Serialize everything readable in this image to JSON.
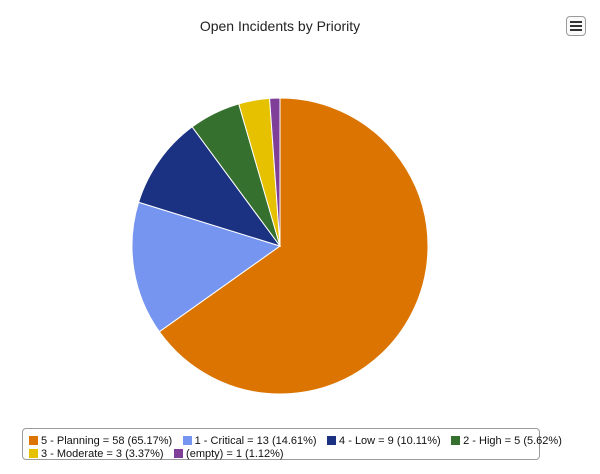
{
  "toolbar": {
    "menu_icon": "hamburger-menu-icon"
  },
  "chart_data": {
    "type": "pie",
    "title": "Open Incidents by Priority",
    "legend_position": "bottom",
    "slices": [
      {
        "label": "5 - Planning = 58 (65.17%)",
        "value": 58,
        "color": "#DB7400"
      },
      {
        "label": "1 - Critical = 13 (14.61%)",
        "value": 13,
        "color": "#7595F0"
      },
      {
        "label": "4 - Low = 9 (10.11%)",
        "value": 9,
        "color": "#1B3282"
      },
      {
        "label": "2 - High = 5 (5.62%)",
        "value": 5,
        "color": "#36702E"
      },
      {
        "label": "3 - Moderate = 3 (3.37%)",
        "value": 3,
        "color": "#E5C100"
      },
      {
        "label": "(empty) = 1 (1.12%)",
        "value": 1,
        "color": "#7F3F98"
      }
    ]
  }
}
